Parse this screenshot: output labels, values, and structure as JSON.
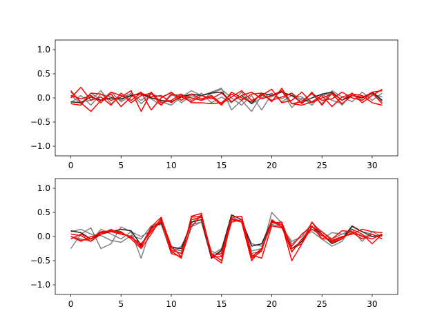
{
  "chart_data": [
    {
      "type": "line",
      "title": "",
      "xlabel": "",
      "ylabel": "",
      "xlim": [
        -1.55,
        32.55
      ],
      "ylim": [
        -1.2,
        1.2
      ],
      "grid": false,
      "xticks": [
        0,
        5,
        10,
        15,
        20,
        25,
        30
      ],
      "xtick_labels": [
        "0",
        "5",
        "10",
        "15",
        "20",
        "25",
        "30"
      ],
      "yticks": [
        -1.0,
        -0.5,
        0.0,
        0.5,
        1.0
      ],
      "ytick_labels": [
        "−1.0",
        "−0.5",
        "0.0",
        "0.5",
        "1.0"
      ],
      "x": [
        0,
        1,
        2,
        3,
        4,
        5,
        6,
        7,
        8,
        9,
        10,
        11,
        12,
        13,
        14,
        15,
        16,
        17,
        18,
        19,
        20,
        21,
        22,
        23,
        24,
        25,
        26,
        27,
        28,
        29,
        30,
        31
      ],
      "series": [
        {
          "color": "#808080",
          "values": [
            0.12,
            -0.08,
            -0.05,
            0.15,
            -0.12,
            0.02,
            0.08,
            -0.05,
            0.1,
            -0.08,
            -0.15,
            0.02,
            0.15,
            0.05,
            0.12,
            0.2,
            -0.25,
            -0.05,
            -0.28,
            0.05,
            0.02,
            0.15,
            -0.2,
            0.0,
            -0.1,
            0.05,
            0.1,
            -0.15,
            0.1,
            -0.05,
            0.08,
            0.02
          ]
        },
        {
          "color": "#808080",
          "values": [
            -0.1,
            0.05,
            -0.15,
            0.08,
            0.02,
            -0.05,
            0.1,
            -0.12,
            0.08,
            0.02,
            0.1,
            -0.1,
            0.05,
            -0.05,
            0.1,
            0.18,
            0.0,
            -0.15,
            0.05,
            -0.25,
            0.08,
            -0.02,
            0.1,
            -0.05,
            0.08,
            -0.12,
            0.15,
            0.02,
            -0.08,
            0.12,
            -0.05,
            0.1
          ]
        },
        {
          "color": "#808080",
          "values": [
            0.05,
            -0.12,
            0.1,
            -0.05,
            0.12,
            -0.08,
            0.05,
            0.1,
            -0.02,
            -0.15,
            0.05,
            0.08,
            -0.05,
            0.1,
            -0.1,
            0.02,
            -0.1,
            0.12,
            -0.12,
            0.0,
            0.1,
            -0.08,
            0.05,
            0.02,
            -0.15,
            0.08,
            -0.05,
            -0.12,
            0.05,
            0.0,
            0.1,
            -0.08
          ]
        },
        {
          "color": "#222222",
          "values": [
            -0.08,
            -0.1,
            0.02,
            -0.05,
            0.0,
            -0.02,
            0.05,
            0.08,
            0.0,
            -0.05,
            -0.08,
            0.02,
            0.08,
            0.05,
            0.1,
            0.12,
            -0.08,
            0.05,
            -0.12,
            0.1,
            0.05,
            0.12,
            0.05,
            -0.1,
            0.0,
            0.08,
            0.12,
            -0.05,
            0.05,
            0.0,
            0.12,
            -0.05
          ]
        },
        {
          "color": "#ff0000",
          "values": [
            0.15,
            -0.1,
            -0.28,
            -0.05,
            0.08,
            -0.18,
            0.02,
            0.12,
            -0.25,
            0.0,
            0.12,
            -0.05,
            0.08,
            -0.02,
            0.05,
            -0.12,
            0.02,
            0.15,
            -0.05,
            0.05,
            0.18,
            -0.1,
            -0.05,
            0.12,
            -0.1,
            0.0,
            0.08,
            -0.12,
            0.05,
            0.02,
            0.1,
            -0.12
          ]
        },
        {
          "color": "#ff0000",
          "values": [
            0.0,
            0.22,
            -0.05,
            0.02,
            -0.15,
            0.1,
            -0.1,
            0.05,
            0.1,
            -0.15,
            0.08,
            0.02,
            -0.08,
            0.05,
            -0.02,
            0.1,
            -0.08,
            0.05,
            0.12,
            -0.02,
            0.05,
            0.15,
            -0.12,
            -0.08,
            0.1,
            -0.05,
            -0.02,
            0.12,
            0.0,
            -0.05,
            0.12,
            0.15
          ]
        },
        {
          "color": "#ff0000",
          "values": [
            -0.12,
            -0.15,
            0.1,
            0.08,
            -0.05,
            0.02,
            0.15,
            -0.28,
            0.12,
            -0.1,
            -0.05,
            0.08,
            -0.1,
            -0.1,
            -0.12,
            -0.1,
            0.08,
            -0.05,
            0.08,
            0.1,
            -0.08,
            0.2,
            -0.12,
            -0.15,
            -0.08,
            0.05,
            -0.18,
            0.02,
            0.08,
            0.05,
            -0.1,
            -0.15
          ]
        },
        {
          "color": "#ff0000",
          "values": [
            0.05,
            -0.02,
            0.05,
            -0.1,
            0.12,
            0.05,
            -0.05,
            0.1,
            0.02,
            0.05,
            -0.1,
            0.05,
            0.0,
            -0.05,
            0.02,
            -0.15,
            0.12,
            0.0,
            -0.08,
            0.08,
            -0.05,
            0.02,
            0.1,
            -0.12,
            0.12,
            -0.15,
            0.1,
            -0.05,
            0.1,
            -0.1,
            0.05,
            0.18
          ]
        }
      ]
    },
    {
      "type": "line",
      "title": "",
      "xlabel": "",
      "ylabel": "",
      "xlim": [
        -1.55,
        32.55
      ],
      "ylim": [
        -1.2,
        1.2
      ],
      "grid": false,
      "xticks": [
        0,
        5,
        10,
        15,
        20,
        25,
        30
      ],
      "xtick_labels": [
        "0",
        "5",
        "10",
        "15",
        "20",
        "25",
        "30"
      ],
      "yticks": [
        -1.0,
        -0.5,
        0.0,
        0.5,
        1.0
      ],
      "ytick_labels": [
        "−1.0",
        "−0.5",
        "0.0",
        "0.5",
        "1.0"
      ],
      "x": [
        0,
        1,
        2,
        3,
        4,
        5,
        6,
        7,
        8,
        9,
        10,
        11,
        12,
        13,
        14,
        15,
        16,
        17,
        18,
        19,
        20,
        21,
        22,
        23,
        24,
        25,
        26,
        27,
        28,
        29,
        30,
        31
      ],
      "series": [
        {
          "color": "#808080",
          "values": [
            -0.25,
            0.05,
            0.18,
            -0.25,
            -0.15,
            0.2,
            0.1,
            -0.45,
            0.2,
            0.25,
            -0.35,
            -0.2,
            0.2,
            0.3,
            -0.3,
            -0.4,
            0.42,
            0.3,
            -0.35,
            -0.3,
            0.5,
            0.28,
            -0.3,
            -0.1,
            0.3,
            -0.05,
            -0.2,
            -0.1,
            0.2,
            0.1,
            0.05,
            -0.05
          ]
        },
        {
          "color": "#808080",
          "values": [
            0.1,
            0.15,
            0.05,
            0.02,
            -0.08,
            -0.12,
            0.02,
            -0.05,
            0.22,
            0.3,
            -0.25,
            -0.3,
            0.28,
            0.45,
            -0.38,
            -0.25,
            0.3,
            0.35,
            -0.3,
            -0.25,
            0.25,
            0.2,
            -0.1,
            0.0,
            0.1,
            -0.05,
            0.08,
            0.05,
            0.1,
            0.02,
            0.0,
            0.05
          ]
        },
        {
          "color": "#808080",
          "values": [
            0.0,
            -0.05,
            -0.1,
            0.15,
            0.05,
            -0.05,
            0.1,
            0.0,
            0.12,
            0.3,
            -0.2,
            -0.3,
            0.25,
            0.3,
            -0.45,
            -0.3,
            0.35,
            0.3,
            -0.15,
            -0.2,
            0.3,
            0.2,
            -0.15,
            0.0,
            0.28,
            0.1,
            -0.05,
            0.05,
            0.15,
            -0.1,
            0.1,
            0.0
          ]
        },
        {
          "color": "#222222",
          "values": [
            0.12,
            0.08,
            -0.05,
            0.05,
            0.1,
            0.15,
            0.12,
            -0.18,
            0.18,
            0.28,
            -0.22,
            -0.25,
            0.3,
            0.35,
            -0.45,
            -0.28,
            0.45,
            0.35,
            -0.2,
            -0.15,
            0.32,
            0.25,
            -0.25,
            -0.1,
            0.2,
            0.05,
            -0.15,
            -0.05,
            0.22,
            0.1,
            0.0,
            0.02
          ]
        },
        {
          "color": "#ff0000",
          "values": [
            0.05,
            0.02,
            -0.1,
            0.05,
            0.12,
            0.1,
            -0.05,
            -0.25,
            0.05,
            0.38,
            -0.2,
            -0.42,
            0.2,
            0.45,
            -0.35,
            -0.5,
            0.35,
            0.3,
            -0.5,
            -0.25,
            0.3,
            0.25,
            -0.5,
            -0.15,
            0.3,
            0.05,
            -0.12,
            -0.05,
            0.15,
            0.05,
            -0.15,
            0.05
          ]
        },
        {
          "color": "#ff0000",
          "values": [
            0.0,
            -0.1,
            0.0,
            0.05,
            0.15,
            0.05,
            0.0,
            -0.2,
            0.15,
            0.35,
            -0.35,
            -0.42,
            0.4,
            0.42,
            -0.4,
            -0.55,
            0.38,
            0.3,
            -0.42,
            -0.25,
            0.28,
            0.3,
            -0.25,
            -0.15,
            0.2,
            0.1,
            -0.08,
            0.0,
            0.05,
            0.15,
            0.1,
            0.08
          ]
        },
        {
          "color": "#ff0000",
          "values": [
            -0.05,
            0.05,
            -0.05,
            0.08,
            0.1,
            0.05,
            0.0,
            -0.22,
            0.2,
            0.4,
            -0.3,
            -0.45,
            0.42,
            0.48,
            -0.4,
            -0.35,
            0.4,
            0.42,
            -0.38,
            -0.45,
            0.22,
            0.18,
            -0.2,
            0.05,
            0.22,
            -0.05,
            -0.05,
            0.12,
            0.1,
            0.0,
            -0.05,
            0.05
          ]
        },
        {
          "color": "#ff0000",
          "values": [
            0.0,
            -0.08,
            -0.05,
            0.1,
            0.12,
            0.08,
            -0.02,
            -0.15,
            0.1,
            0.32,
            -0.28,
            -0.35,
            0.35,
            0.4,
            -0.42,
            -0.42,
            0.3,
            0.35,
            -0.45,
            -0.3,
            0.35,
            0.2,
            -0.32,
            -0.05,
            0.15,
            0.02,
            -0.1,
            -0.02,
            0.08,
            -0.05,
            0.05,
            -0.05
          ]
        }
      ]
    }
  ]
}
